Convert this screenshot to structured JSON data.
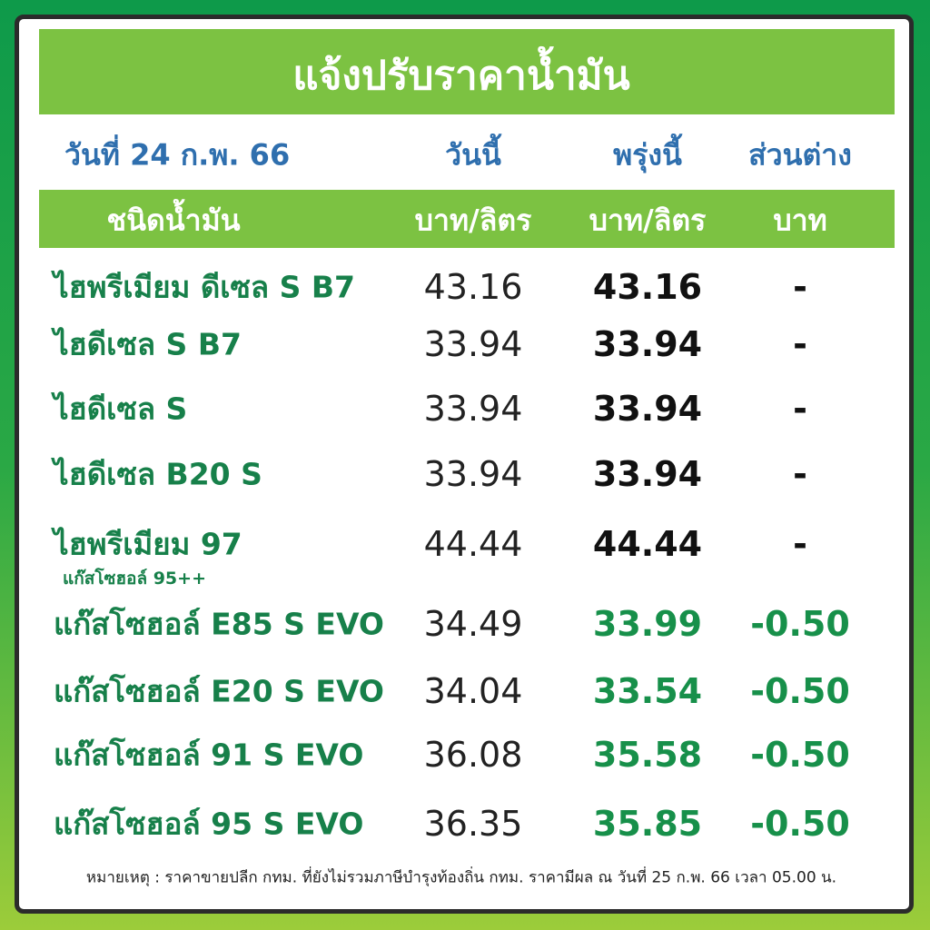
{
  "header": {
    "title": "แจ้งปรับราคาน้ำมัน"
  },
  "columns": [
    "วันที่ 24 ก.พ. 66",
    "วันนี้",
    "พรุ่งนี้",
    "ส่วนต่าง"
  ],
  "units": [
    "ชนิดน้ำมัน",
    "บาท/ลิตร",
    "บาท/ลิตร",
    "บาท"
  ],
  "table": {
    "rows": [
      {
        "name": "ไฮพรีเมียม ดีเซล S B7",
        "today": "43.16",
        "tomorrow": "43.16",
        "diff": "-"
      },
      {
        "name": "ไฮดีเซล S B7",
        "today": "33.94",
        "tomorrow": "33.94",
        "diff": "-"
      },
      {
        "name": "ไฮดีเซล S",
        "today": "33.94",
        "tomorrow": "33.94",
        "diff": "-"
      },
      {
        "name": "ไฮดีเซล B20 S",
        "today": "33.94",
        "tomorrow": "33.94",
        "diff": "-"
      },
      {
        "name": "ไฮพรีเมียม 97",
        "sub": "แก๊สโซฮอล์ 95++",
        "today": "44.44",
        "tomorrow": "44.44",
        "diff": "-"
      },
      {
        "name": "แก๊สโซฮอล์ E85 S EVO",
        "today": "34.49",
        "tomorrow": "33.99",
        "diff": "-0.50"
      },
      {
        "name": "แก๊สโซฮอล์ E20 S EVO",
        "today": "34.04",
        "tomorrow": "33.54",
        "diff": "-0.50"
      },
      {
        "name": "แก๊สโซฮอล์ 91 S EVO",
        "today": "36.08",
        "tomorrow": "35.58",
        "diff": "-0.50"
      },
      {
        "name": "แก๊สโซฮอล์ 95 S EVO",
        "today": "36.35",
        "tomorrow": "35.85",
        "diff": "-0.50"
      }
    ]
  },
  "note": "หมายเหตุ :  ราคาขายปลีก กทม. ที่ยังไม่รวมภาษีบำรุงท้องถิ่น กทม.  ราคามีผล ณ วันที่ 25 ก.พ. 66 เวลา 05.00 น."
}
